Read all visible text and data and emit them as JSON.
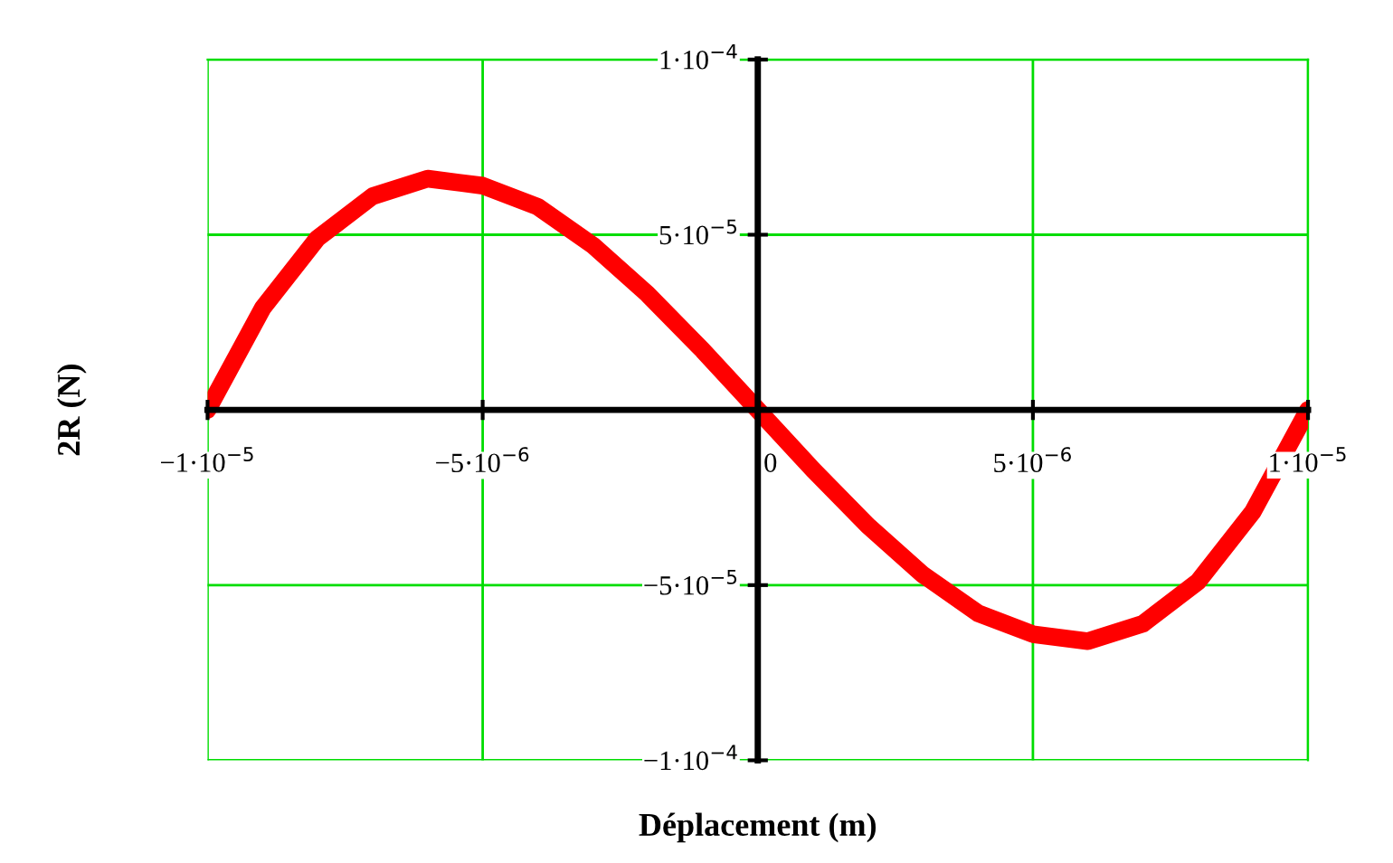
{
  "chart_data": {
    "type": "line",
    "xlabel": "Déplacement (m)",
    "ylabel": "2R (N)",
    "x": [
      -1e-05,
      -9e-06,
      -8e-06,
      -7e-06,
      -6e-06,
      -5e-06,
      -4e-06,
      -3e-06,
      -2e-06,
      -1e-06,
      0,
      1e-06,
      2e-06,
      3e-06,
      4e-06,
      5e-06,
      6e-06,
      7e-06,
      8e-06,
      9e-06,
      1e-05
    ],
    "series": [
      {
        "color": "#ff0000",
        "values": [
          0,
          2.9e-05,
          4.9e-05,
          6.1e-05,
          6.6e-05,
          6.4e-05,
          5.8e-05,
          4.7e-05,
          3.3e-05,
          1.7e-05,
          0,
          -1.7e-05,
          -3.3e-05,
          -4.7e-05,
          -5.8e-05,
          -6.4e-05,
          -6.6e-05,
          -6.1e-05,
          -4.9e-05,
          -2.9e-05,
          0
        ]
      }
    ],
    "xlim": [
      -1e-05,
      1e-05
    ],
    "ylim": [
      -0.0001,
      0.0001
    ],
    "xticks": [
      {
        "value": -1e-05,
        "label": "−1·10$^{−5}$"
      },
      {
        "value": -5e-06,
        "label": "−5·10$^{−6}$"
      },
      {
        "value": 0,
        "label": "0"
      },
      {
        "value": 5e-06,
        "label": "5·10$^{−6}$"
      },
      {
        "value": 1e-05,
        "label": "1·10$^{−5}$"
      }
    ],
    "yticks": [
      {
        "value": -0.0001,
        "label": "−1·10$^{−4}$"
      },
      {
        "value": -5e-05,
        "label": "−5·10$^{−5}$"
      },
      {
        "value": 0,
        "label": null
      },
      {
        "value": 5e-05,
        "label": "5·10$^{−5}$"
      },
      {
        "value": 0.0001,
        "label": "1·10$^{−4}$"
      }
    ],
    "grid": true,
    "marker": "none",
    "line_style": "solid",
    "legend": false
  }
}
